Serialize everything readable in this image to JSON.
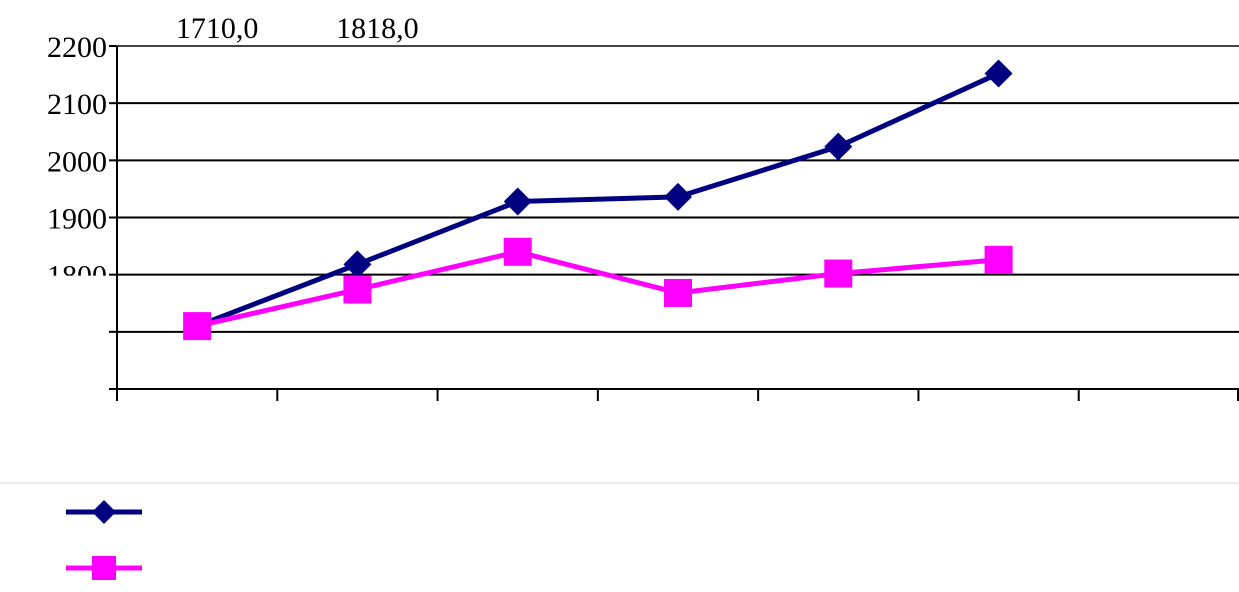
{
  "chart_data": {
    "type": "line",
    "categories": [
      "",
      "",
      "",
      "",
      "",
      ""
    ],
    "yticks": [
      2200,
      2100,
      2000,
      1900,
      1800
    ],
    "ylim": [
      1600,
      2200
    ],
    "grid": true,
    "legend_position": "bottom-left",
    "data_labels": [
      "1710,0",
      "1818,0"
    ],
    "series": [
      {
        "color": "#000080",
        "marker": "diamond",
        "values": [
          1710,
          1818,
          1928,
          1936,
          2024,
          2152
        ]
      },
      {
        "color": "#ff00ff",
        "marker": "square",
        "values": [
          1710,
          1774,
          1840,
          1768,
          1802,
          1826
        ]
      }
    ]
  }
}
